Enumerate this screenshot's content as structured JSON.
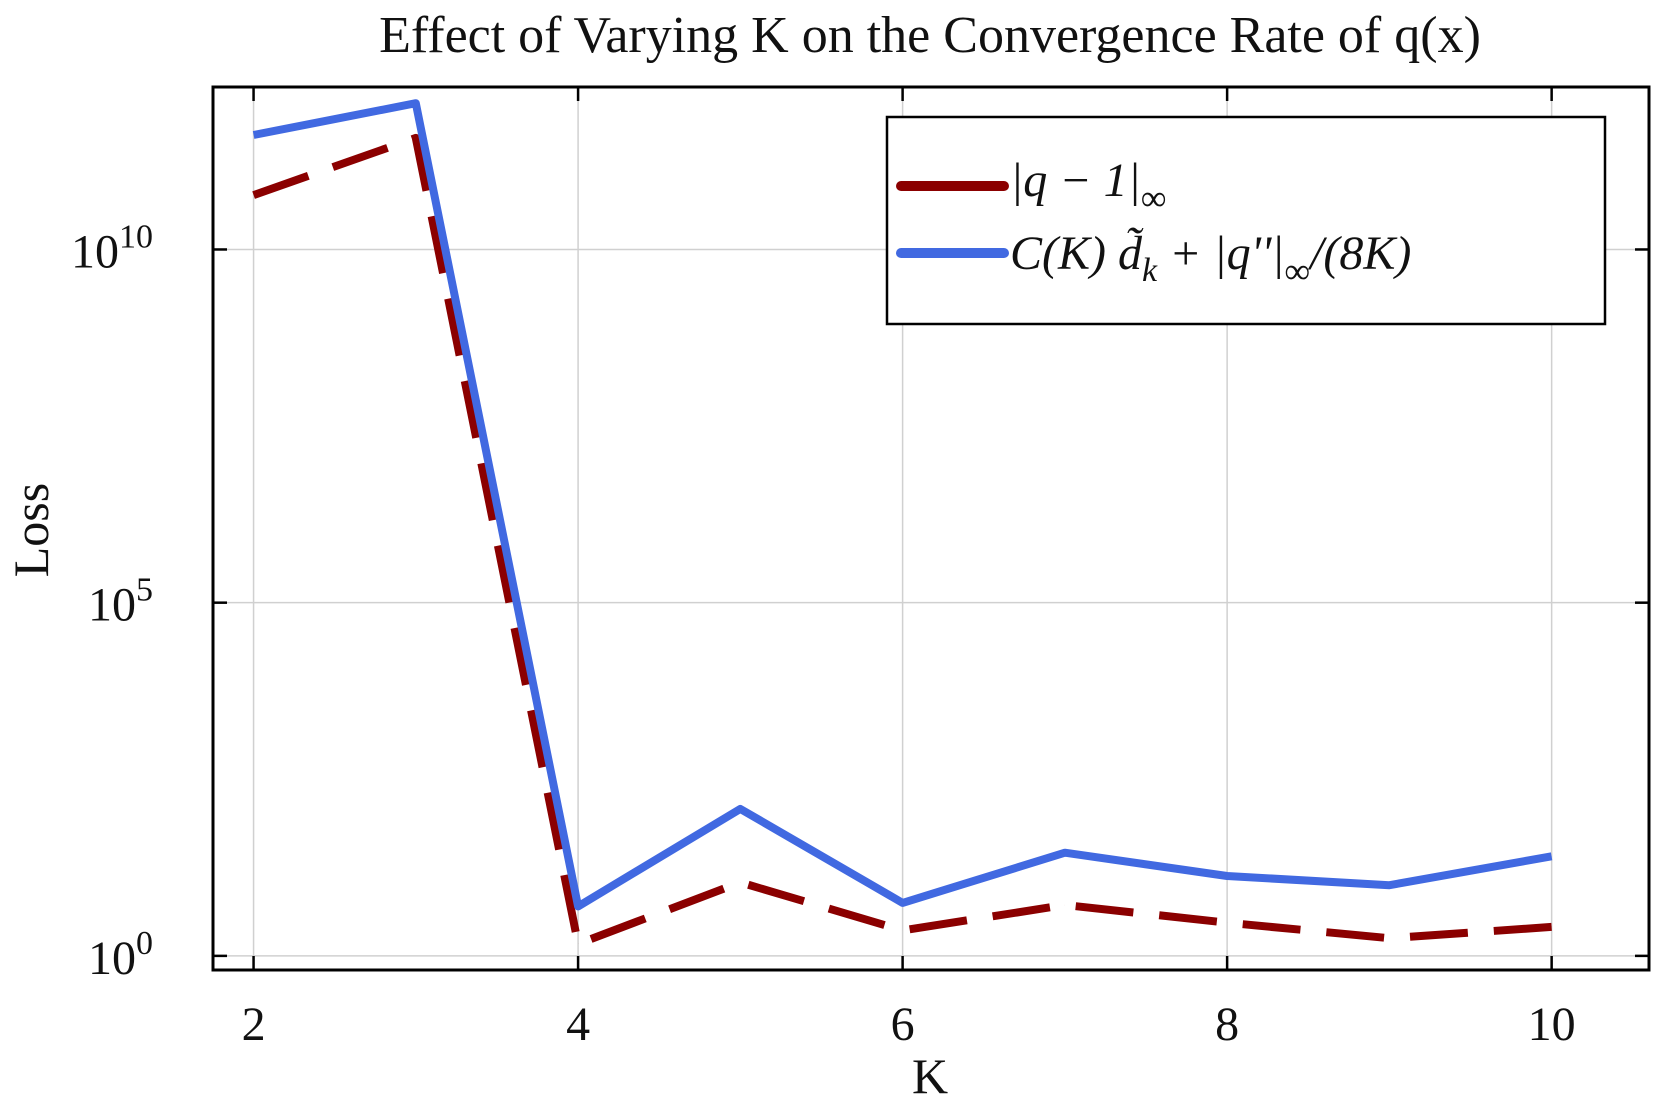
{
  "chart_data": {
    "type": "line",
    "title": "Effect of Varying K on the Convergence Rate of q(x)",
    "xlabel": "K",
    "ylabel": "Loss",
    "x": [
      2,
      3,
      4,
      5,
      6,
      7,
      8,
      9,
      10
    ],
    "xlim": [
      1.75,
      10.6
    ],
    "ylim_log10": [
      -0.2,
      12.3
    ],
    "yscale": "log",
    "xticks": [
      {
        "value": 2,
        "label": "2"
      },
      {
        "value": 4,
        "label": "4"
      },
      {
        "value": 6,
        "label": "6"
      },
      {
        "value": 8,
        "label": "8"
      },
      {
        "value": 10,
        "label": "10"
      }
    ],
    "yticks": [
      {
        "exponent": 0,
        "base": "10",
        "sup": "0"
      },
      {
        "exponent": 5,
        "base": "10",
        "sup": "5"
      },
      {
        "exponent": 10,
        "base": "10",
        "sup": "10"
      }
    ],
    "grid": true,
    "legend_position": "top-right",
    "series": [
      {
        "name": "|q − 1|∞",
        "color": "#8b0000",
        "dash": "dashed",
        "log10_values": [
          10.77,
          11.58,
          0.17,
          1.04,
          0.36,
          0.72,
          0.47,
          0.25,
          0.41
        ],
        "values": [
          59000000000.0,
          380000000000.0,
          1.48,
          11,
          2.3,
          5.2,
          2.95,
          1.78,
          2.57
        ]
      },
      {
        "name": "C(K) d̃k + |q''|∞/(8K)",
        "color": "#4169e1",
        "dash": "solid",
        "log10_values": [
          11.62,
          12.07,
          0.7,
          2.08,
          0.75,
          1.46,
          1.13,
          1.0,
          1.41
        ],
        "values": [
          420000000000.0,
          1170000000000.0,
          5.0,
          120,
          5.6,
          29,
          13.5,
          10,
          26
        ]
      }
    ],
    "legend": {
      "entry1": {
        "main": "|q − 1|",
        "sub": "∞"
      },
      "entry2": {
        "main1": "C(K) ",
        "dtilde": "d̃",
        "sub1": "k",
        "main2": " + |q''|",
        "sub2": "∞",
        "main3": "/(8K)"
      }
    }
  }
}
